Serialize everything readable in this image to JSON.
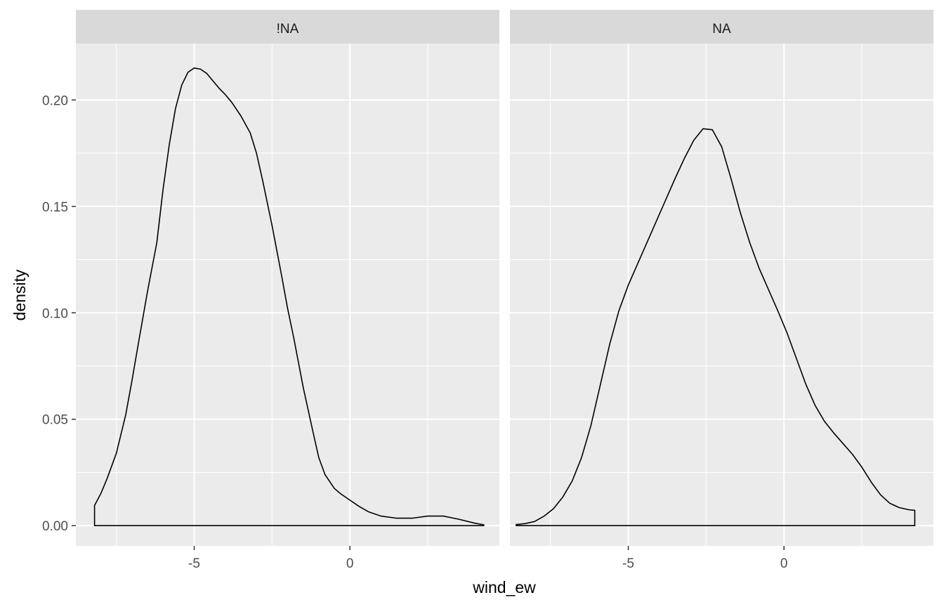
{
  "chart_data": {
    "type": "density",
    "xlabel": "wind_ew",
    "ylabel": "density",
    "x_ticks": [
      -5,
      0
    ],
    "x_tick_labels": [
      "-5",
      "0"
    ],
    "y_ticks": [
      0,
      0.05,
      0.1,
      0.15,
      0.2
    ],
    "y_tick_labels": [
      "0.00",
      "0.05",
      "0.10",
      "0.15",
      "0.20"
    ],
    "xlim": [
      -8.8,
      4.8
    ],
    "ylim": [
      -0.0095,
      0.2265
    ],
    "grid": true,
    "legend": "none",
    "facets": [
      {
        "label": "!NA",
        "x": [
          -8.2,
          -8.0,
          -7.8,
          -7.5,
          -7.2,
          -7.0,
          -6.8,
          -6.5,
          -6.2,
          -6.0,
          -5.8,
          -5.6,
          -5.4,
          -5.2,
          -5.0,
          -4.8,
          -4.6,
          -4.4,
          -4.2,
          -4.0,
          -3.8,
          -3.5,
          -3.2,
          -3.0,
          -2.8,
          -2.5,
          -2.2,
          -2.0,
          -1.8,
          -1.5,
          -1.2,
          -1.0,
          -0.8,
          -0.5,
          -0.3,
          0.0,
          0.3,
          0.6,
          1.0,
          1.5,
          2.0,
          2.5,
          3.0,
          3.5,
          4.0,
          4.3
        ],
        "values": [
          0.0095,
          0.015,
          0.022,
          0.034,
          0.052,
          0.068,
          0.085,
          0.11,
          0.133,
          0.158,
          0.179,
          0.196,
          0.207,
          0.213,
          0.215,
          0.2145,
          0.2125,
          0.209,
          0.2055,
          0.2025,
          0.199,
          0.1925,
          0.1845,
          0.175,
          0.162,
          0.141,
          0.118,
          0.102,
          0.088,
          0.065,
          0.045,
          0.032,
          0.024,
          0.0175,
          0.015,
          0.012,
          0.009,
          0.0065,
          0.0045,
          0.0035,
          0.0035,
          0.0045,
          0.0045,
          0.003,
          0.0012,
          0.0004
        ]
      },
      {
        "label": "NA",
        "x": [
          -8.6,
          -8.3,
          -8.0,
          -7.7,
          -7.4,
          -7.1,
          -6.8,
          -6.5,
          -6.2,
          -5.9,
          -5.6,
          -5.3,
          -5.0,
          -4.7,
          -4.4,
          -4.1,
          -3.8,
          -3.5,
          -3.2,
          -2.9,
          -2.6,
          -2.3,
          -2.0,
          -1.7,
          -1.4,
          -1.1,
          -0.8,
          -0.5,
          -0.2,
          0.1,
          0.4,
          0.7,
          1.0,
          1.3,
          1.6,
          1.9,
          2.2,
          2.5,
          2.8,
          3.1,
          3.4,
          3.7,
          4.0,
          4.2
        ],
        "values": [
          0.0005,
          0.001,
          0.002,
          0.0045,
          0.008,
          0.0135,
          0.021,
          0.032,
          0.047,
          0.066,
          0.085,
          0.101,
          0.113,
          0.123,
          0.133,
          0.143,
          0.153,
          0.163,
          0.1725,
          0.181,
          0.1865,
          0.186,
          0.178,
          0.163,
          0.147,
          0.133,
          0.121,
          0.111,
          0.101,
          0.0905,
          0.0785,
          0.0665,
          0.0565,
          0.049,
          0.0435,
          0.0385,
          0.0335,
          0.0275,
          0.0205,
          0.0145,
          0.0105,
          0.0085,
          0.0075,
          0.0072
        ]
      }
    ]
  }
}
